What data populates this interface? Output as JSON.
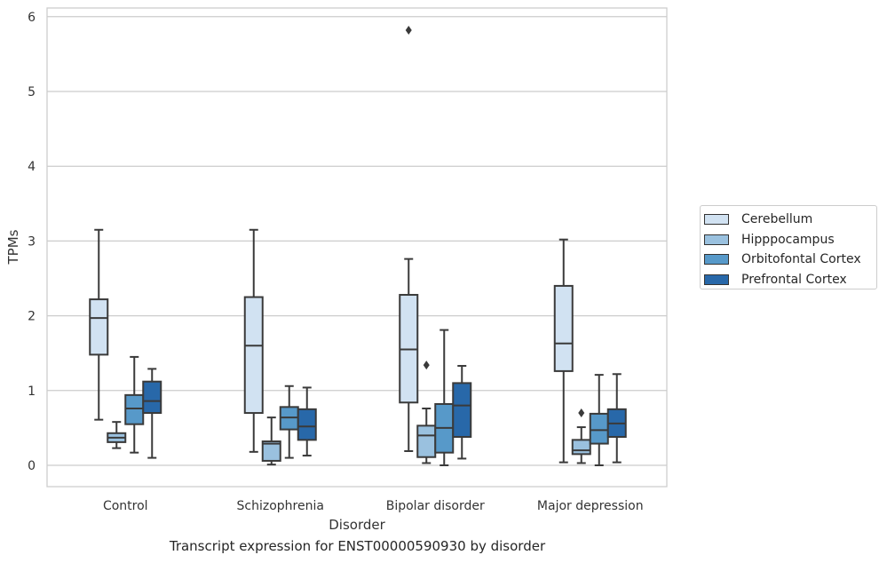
{
  "caption": "Transcript expression for ENST00000590930 by disorder",
  "chart_data": {
    "type": "box",
    "xlabel": "Disorder",
    "ylabel": "TPMs",
    "ylim": [
      -0.28,
      6.12
    ],
    "yticks": [
      0,
      1,
      2,
      3,
      4,
      5,
      6
    ],
    "grid": "horizontal",
    "legend_position": "right",
    "categories": [
      "Control",
      "Schizophrenia",
      "Bipolar disorder",
      "Major depression"
    ],
    "series": [
      {
        "name": "Cerebellum",
        "color": "#d1e2f2",
        "boxes": [
          {
            "whisker_low": 0.61,
            "q1": 1.48,
            "median": 1.97,
            "q3": 2.22,
            "whisker_high": 3.15,
            "outliers": []
          },
          {
            "whisker_low": 0.18,
            "q1": 0.7,
            "median": 1.6,
            "q3": 2.25,
            "whisker_high": 3.15,
            "outliers": []
          },
          {
            "whisker_low": 0.19,
            "q1": 0.84,
            "median": 1.55,
            "q3": 2.28,
            "whisker_high": 2.76,
            "outliers": [
              5.82
            ]
          },
          {
            "whisker_low": 0.04,
            "q1": 1.26,
            "median": 1.63,
            "q3": 2.4,
            "whisker_high": 3.02,
            "outliers": []
          }
        ]
      },
      {
        "name": "Hipppocampus",
        "color": "#9ac1df",
        "boxes": [
          {
            "whisker_low": 0.23,
            "q1": 0.31,
            "median": 0.37,
            "q3": 0.43,
            "whisker_high": 0.58,
            "outliers": []
          },
          {
            "whisker_low": 0.01,
            "q1": 0.06,
            "median": 0.29,
            "q3": 0.32,
            "whisker_high": 0.64,
            "outliers": []
          },
          {
            "whisker_low": 0.03,
            "q1": 0.11,
            "median": 0.4,
            "q3": 0.53,
            "whisker_high": 0.76,
            "outliers": [
              1.34
            ]
          },
          {
            "whisker_low": 0.03,
            "q1": 0.15,
            "median": 0.2,
            "q3": 0.34,
            "whisker_high": 0.51,
            "outliers": [
              0.7
            ]
          }
        ]
      },
      {
        "name": "Orbitofontal Cortex",
        "color": "#5799c9",
        "boxes": [
          {
            "whisker_low": 0.17,
            "q1": 0.55,
            "median": 0.76,
            "q3": 0.94,
            "whisker_high": 1.45,
            "outliers": []
          },
          {
            "whisker_low": 0.1,
            "q1": 0.48,
            "median": 0.64,
            "q3": 0.78,
            "whisker_high": 1.06,
            "outliers": []
          },
          {
            "whisker_low": 0.0,
            "q1": 0.17,
            "median": 0.5,
            "q3": 0.82,
            "whisker_high": 1.81,
            "outliers": []
          },
          {
            "whisker_low": 0.0,
            "q1": 0.29,
            "median": 0.47,
            "q3": 0.69,
            "whisker_high": 1.21,
            "outliers": []
          }
        ]
      },
      {
        "name": "Prefrontal Cortex",
        "color": "#2868a9",
        "boxes": [
          {
            "whisker_low": 0.1,
            "q1": 0.7,
            "median": 0.86,
            "q3": 1.12,
            "whisker_high": 1.29,
            "outliers": []
          },
          {
            "whisker_low": 0.13,
            "q1": 0.34,
            "median": 0.52,
            "q3": 0.75,
            "whisker_high": 1.04,
            "outliers": []
          },
          {
            "whisker_low": 0.09,
            "q1": 0.38,
            "median": 0.8,
            "q3": 1.1,
            "whisker_high": 1.33,
            "outliers": []
          },
          {
            "whisker_low": 0.04,
            "q1": 0.38,
            "median": 0.56,
            "q3": 0.75,
            "whisker_high": 1.22,
            "outliers": []
          }
        ]
      }
    ]
  }
}
